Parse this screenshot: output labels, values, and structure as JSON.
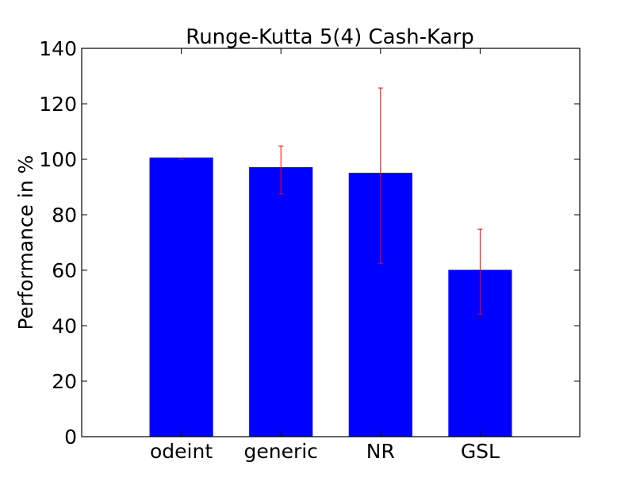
{
  "chart_data": {
    "type": "bar",
    "title": "Runge-Kutta 5(4) Cash-Karp",
    "xlabel": "",
    "ylabel": "Performance in %",
    "categories": [
      "odeint",
      "generic",
      "NR",
      "GSL"
    ],
    "values": [
      100.5,
      97,
      95,
      60
    ],
    "errors": [
      {
        "low": 100,
        "high": 100
      },
      {
        "low": 87.5,
        "high": 104.8
      },
      {
        "low": 62.5,
        "high": 125.7
      },
      {
        "low": 44.2,
        "high": 74.8
      }
    ],
    "ylim": [
      0,
      140
    ],
    "yticks": [
      "0",
      "20",
      "40",
      "60",
      "80",
      "100",
      "120",
      "140"
    ],
    "grid": false,
    "bar_color": "#0000ff",
    "error_color": "#ff0000"
  }
}
